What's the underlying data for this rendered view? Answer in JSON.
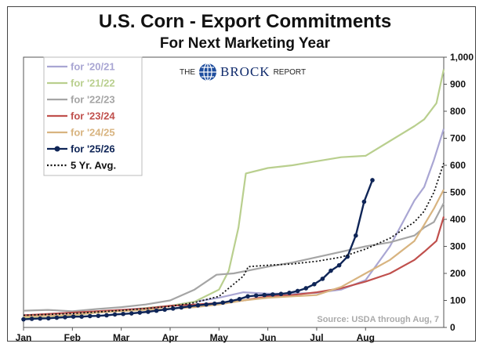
{
  "chart_data": {
    "type": "line",
    "title": "U.S. Corn - Export Commitments",
    "subtitle": "For Next Marketing Year",
    "logo": {
      "pre": "THE",
      "main": "BROCK",
      "post": "REPORT"
    },
    "source": "Source: USDA through Aug, 7",
    "x_ticks": [
      "Jan",
      "Feb",
      "Mar",
      "Apr",
      "May",
      "Jun",
      "Jul",
      "Aug"
    ],
    "y_ticks": [
      "0",
      "100",
      "200",
      "300",
      "400",
      "500",
      "600",
      "700",
      "800",
      "900",
      "1,000"
    ],
    "ylim": [
      0,
      1000
    ],
    "xlim": [
      0,
      8.6
    ],
    "grid": false,
    "legend_position": "top-left",
    "series": [
      {
        "name": "for '20/21",
        "color": "#a9a6d3",
        "style": "solid",
        "x": [
          0,
          0.5,
          1,
          1.5,
          2,
          2.5,
          3,
          3.5,
          4,
          4.5,
          5,
          5.5,
          6,
          6.5,
          7,
          7.5,
          8,
          8.2,
          8.4,
          8.6
        ],
        "y": [
          45,
          50,
          55,
          60,
          65,
          72,
          80,
          95,
          110,
          130,
          125,
          125,
          128,
          140,
          175,
          300,
          470,
          520,
          620,
          735
        ]
      },
      {
        "name": "for '21/22",
        "color": "#b9cf8e",
        "style": "solid",
        "x": [
          0,
          0.5,
          1,
          1.5,
          2,
          2.5,
          3,
          3.5,
          4,
          4.2,
          4.4,
          4.55,
          5,
          5.5,
          6,
          6.5,
          7,
          7.5,
          8,
          8.2,
          8.45,
          8.6
        ],
        "y": [
          35,
          35,
          45,
          55,
          62,
          72,
          80,
          95,
          140,
          210,
          370,
          570,
          590,
          600,
          615,
          630,
          635,
          690,
          745,
          770,
          830,
          955
        ]
      },
      {
        "name": "for '22/23",
        "color": "#a5a5a5",
        "style": "solid",
        "x": [
          0,
          0.5,
          1,
          1.5,
          2,
          2.5,
          3,
          3.5,
          3.95,
          4.3,
          5,
          5.5,
          6,
          6.5,
          7,
          7.5,
          8,
          8.2,
          8.4,
          8.6
        ],
        "y": [
          62,
          65,
          60,
          68,
          75,
          85,
          100,
          140,
          195,
          200,
          225,
          240,
          260,
          280,
          300,
          315,
          340,
          370,
          390,
          460
        ]
      },
      {
        "name": "for '23/24",
        "color": "#c0504d",
        "style": "solid",
        "x": [
          0,
          0.5,
          1,
          1.5,
          2,
          2.5,
          3,
          3.5,
          4,
          4.5,
          5,
          5.5,
          6,
          6.5,
          7,
          7.5,
          8,
          8.2,
          8.45,
          8.6
        ],
        "y": [
          45,
          50,
          55,
          60,
          65,
          70,
          80,
          85,
          90,
          100,
          115,
          120,
          130,
          145,
          170,
          200,
          250,
          280,
          320,
          410
        ]
      },
      {
        "name": "for '24/25",
        "color": "#d8b480",
        "style": "solid",
        "x": [
          0,
          0.5,
          1,
          1.5,
          2,
          2.5,
          3,
          3.5,
          4,
          4.5,
          5,
          5.5,
          6,
          6.5,
          7,
          7.5,
          8,
          8.2,
          8.4,
          8.6
        ],
        "y": [
          40,
          43,
          47,
          55,
          60,
          65,
          70,
          75,
          85,
          100,
          110,
          115,
          120,
          150,
          200,
          250,
          320,
          380,
          440,
          510
        ]
      },
      {
        "name": "for '25/26",
        "color": "#0f2557",
        "style": "marker",
        "x": [
          0,
          0.17,
          0.34,
          0.51,
          0.68,
          0.85,
          1.02,
          1.19,
          1.36,
          1.53,
          1.7,
          1.87,
          2.04,
          2.21,
          2.38,
          2.55,
          2.72,
          2.89,
          3.06,
          3.23,
          3.4,
          3.57,
          3.74,
          3.91,
          4.08,
          4.25,
          4.42,
          4.59,
          4.76,
          4.93,
          5.1,
          5.27,
          5.44,
          5.61,
          5.78,
          5.95,
          6.12,
          6.29,
          6.46,
          6.63,
          6.8,
          6.97,
          7.14
        ],
        "y": [
          30,
          32,
          33,
          34,
          36,
          38,
          40,
          40,
          42,
          43,
          45,
          48,
          50,
          52,
          55,
          58,
          62,
          66,
          70,
          74,
          78,
          82,
          85,
          88,
          92,
          98,
          105,
          115,
          118,
          120,
          122,
          124,
          128,
          135,
          145,
          160,
          180,
          210,
          230,
          262,
          340,
          465,
          545
        ]
      },
      {
        "name": "5 Yr. Avg.",
        "color": "#111111",
        "style": "dotted",
        "x": [
          0,
          0.5,
          1,
          1.5,
          2,
          2.5,
          3,
          3.5,
          4,
          4.5,
          4.6,
          5,
          5.5,
          6,
          6.5,
          7,
          7.5,
          8,
          8.2,
          8.4,
          8.6
        ],
        "y": [
          45,
          48,
          52,
          57,
          63,
          70,
          78,
          92,
          115,
          190,
          225,
          230,
          235,
          245,
          260,
          290,
          330,
          390,
          430,
          500,
          608
        ]
      }
    ]
  }
}
